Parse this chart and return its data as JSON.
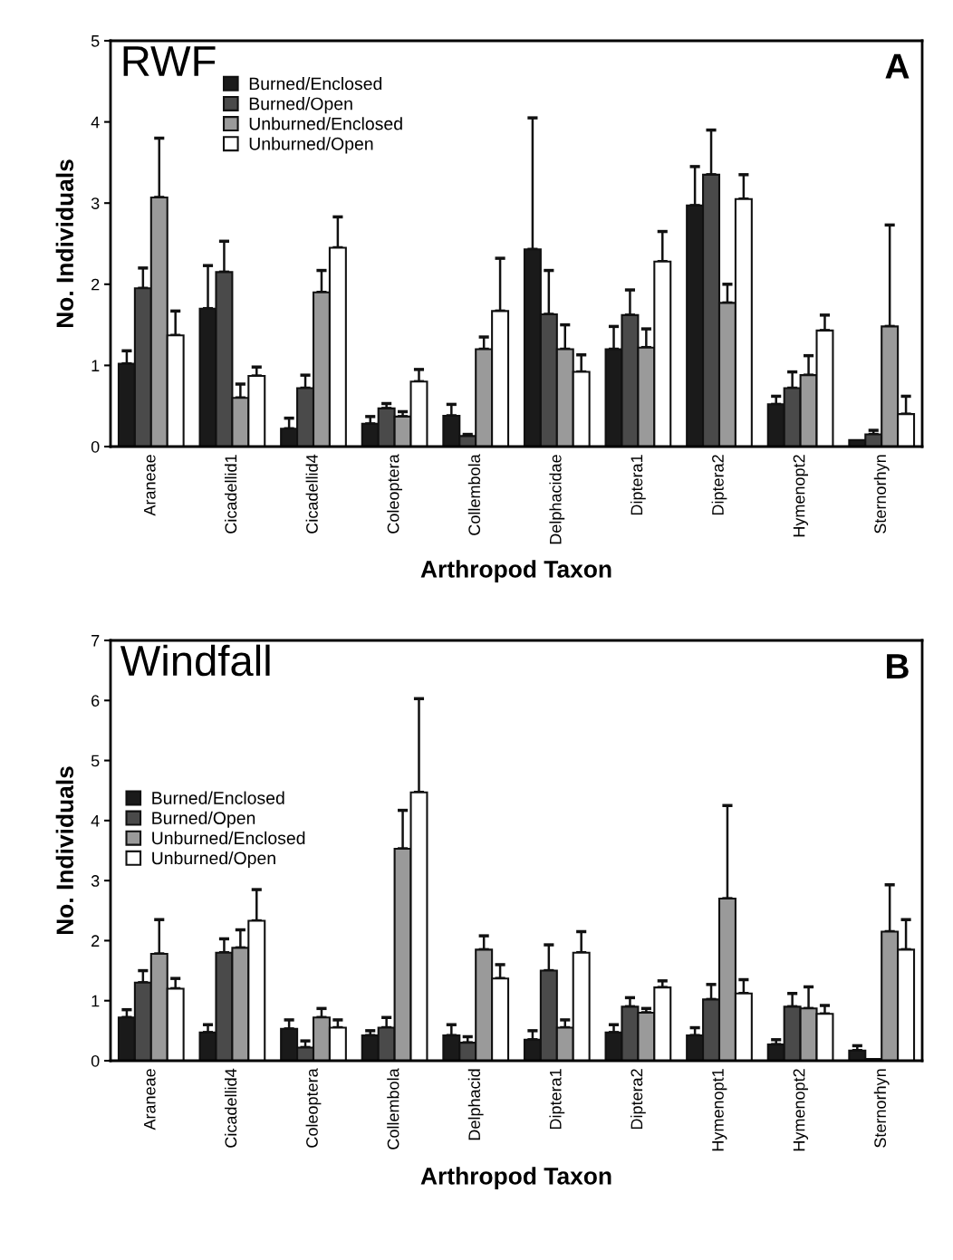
{
  "chart_data": [
    {
      "type": "bar",
      "title": "RWF",
      "xlabel": "Arthropod Taxon",
      "ylabel": "No. Individuals",
      "annotations": [
        "A"
      ],
      "legend": "top left",
      "grid": false,
      "categories": [
        "Araneae",
        "Cicadellid1",
        "Cicadellid4",
        "Coleoptera",
        "Collembola",
        "Delphacidae",
        "Diptera1",
        "Diptera2",
        "Hymenopt2",
        "Sternorhyn"
      ],
      "ylim": [
        0,
        5
      ],
      "yticks": [
        0,
        1,
        2,
        3,
        4,
        5
      ],
      "series": [
        {
          "name": "Burned/Enclosed",
          "color": "#1a1a1a",
          "values": [
            1.02,
            1.7,
            0.22,
            0.28,
            0.38,
            2.43,
            1.2,
            2.97,
            0.52,
            0.08
          ],
          "errors": [
            [
              1.02,
              1.18
            ],
            [
              1.7,
              2.23
            ],
            [
              0.22,
              0.35
            ],
            [
              0.28,
              0.37
            ],
            [
              0.38,
              0.52
            ],
            [
              2.43,
              4.05
            ],
            [
              1.2,
              1.48
            ],
            [
              2.97,
              3.45
            ],
            [
              0.52,
              0.62
            ],
            null
          ]
        },
        {
          "name": "Burned/Open",
          "color": "#4a4a4a",
          "values": [
            1.95,
            2.15,
            0.72,
            0.47,
            0.13,
            1.63,
            1.62,
            3.35,
            0.72,
            0.15
          ],
          "errors": [
            [
              1.95,
              2.2
            ],
            [
              2.15,
              2.53
            ],
            [
              0.72,
              0.88
            ],
            [
              0.47,
              0.53
            ],
            [
              0.13,
              0.15
            ],
            [
              1.63,
              2.17
            ],
            [
              1.62,
              1.93
            ],
            [
              3.35,
              3.9
            ],
            [
              0.72,
              0.92
            ],
            [
              0.15,
              0.2
            ]
          ]
        },
        {
          "name": "Unburned/Enclosed",
          "color": "#9a9a9a",
          "values": [
            3.07,
            0.6,
            1.9,
            0.37,
            1.2,
            1.2,
            1.22,
            1.77,
            0.88,
            1.48
          ],
          "errors": [
            [
              3.07,
              3.8
            ],
            [
              0.6,
              0.77
            ],
            [
              1.9,
              2.17
            ],
            [
              0.37,
              0.43
            ],
            [
              1.2,
              1.35
            ],
            [
              1.2,
              1.5
            ],
            [
              1.22,
              1.45
            ],
            [
              1.77,
              2.0
            ],
            [
              0.88,
              1.12
            ],
            [
              1.48,
              2.73
            ]
          ]
        },
        {
          "name": "Unburned/Open",
          "color": "#ffffff",
          "values": [
            1.37,
            0.87,
            2.45,
            0.8,
            1.67,
            0.92,
            2.28,
            3.05,
            1.43,
            0.4
          ],
          "errors": [
            [
              1.37,
              1.67
            ],
            [
              0.87,
              0.98
            ],
            [
              2.45,
              2.83
            ],
            [
              0.8,
              0.95
            ],
            [
              1.67,
              2.32
            ],
            [
              0.92,
              1.13
            ],
            [
              2.28,
              2.65
            ],
            [
              3.05,
              3.35
            ],
            [
              1.43,
              1.62
            ],
            [
              0.4,
              0.62
            ]
          ]
        }
      ]
    },
    {
      "type": "bar",
      "title": "Windfall",
      "xlabel": "Arthropod Taxon",
      "ylabel": "No. Individuals",
      "annotations": [
        "B"
      ],
      "legend": "left",
      "grid": false,
      "categories": [
        "Araneae",
        "Cicadellid4",
        "Coleoptera",
        "Collembola",
        "Delphacid",
        "Diptera1",
        "Diptera2",
        "Hymenopt1",
        "Hymenopt2",
        "Sternorhyn"
      ],
      "ylim": [
        0,
        7
      ],
      "yticks": [
        0,
        1,
        2,
        3,
        4,
        5,
        6,
        7
      ],
      "series": [
        {
          "name": "Burned/Enclosed",
          "color": "#1a1a1a",
          "values": [
            0.72,
            0.47,
            0.53,
            0.42,
            0.42,
            0.35,
            0.47,
            0.42,
            0.27,
            0.17
          ],
          "errors": [
            [
              0.72,
              0.85
            ],
            [
              0.47,
              0.6
            ],
            [
              0.53,
              0.68
            ],
            [
              0.42,
              0.5
            ],
            [
              0.42,
              0.6
            ],
            [
              0.35,
              0.5
            ],
            [
              0.47,
              0.6
            ],
            [
              0.42,
              0.55
            ],
            [
              0.27,
              0.35
            ],
            [
              0.17,
              0.25
            ]
          ]
        },
        {
          "name": "Burned/Open",
          "color": "#4a4a4a",
          "values": [
            1.3,
            1.8,
            0.22,
            0.55,
            0.3,
            1.5,
            0.9,
            1.02,
            0.9,
            0.03
          ],
          "errors": [
            [
              1.3,
              1.5
            ],
            [
              1.8,
              2.03
            ],
            [
              0.22,
              0.33
            ],
            [
              0.55,
              0.72
            ],
            [
              0.3,
              0.4
            ],
            [
              1.5,
              1.93
            ],
            [
              0.9,
              1.05
            ],
            [
              1.02,
              1.27
            ],
            [
              0.9,
              1.12
            ],
            null
          ]
        },
        {
          "name": "Unburned/Enclosed",
          "color": "#9a9a9a",
          "values": [
            1.78,
            1.88,
            0.72,
            3.53,
            1.85,
            0.55,
            0.8,
            2.7,
            0.87,
            2.15
          ],
          "errors": [
            [
              1.78,
              2.35
            ],
            [
              1.88,
              2.18
            ],
            [
              0.72,
              0.87
            ],
            [
              3.53,
              4.17
            ],
            [
              1.85,
              2.08
            ],
            [
              0.55,
              0.68
            ],
            [
              0.8,
              0.87
            ],
            [
              2.7,
              4.25
            ],
            [
              0.87,
              1.23
            ],
            [
              2.15,
              2.93
            ]
          ]
        },
        {
          "name": "Unburned/Open",
          "color": "#ffffff",
          "values": [
            1.2,
            2.33,
            0.55,
            4.47,
            1.37,
            1.8,
            1.22,
            1.12,
            0.78,
            1.85
          ],
          "errors": [
            [
              1.2,
              1.37
            ],
            [
              2.33,
              2.85
            ],
            [
              0.55,
              0.68
            ],
            [
              4.47,
              6.03
            ],
            [
              1.37,
              1.6
            ],
            [
              1.8,
              2.15
            ],
            [
              1.22,
              1.33
            ],
            [
              1.12,
              1.35
            ],
            [
              0.78,
              0.92
            ],
            [
              1.85,
              2.35
            ]
          ]
        }
      ]
    }
  ]
}
